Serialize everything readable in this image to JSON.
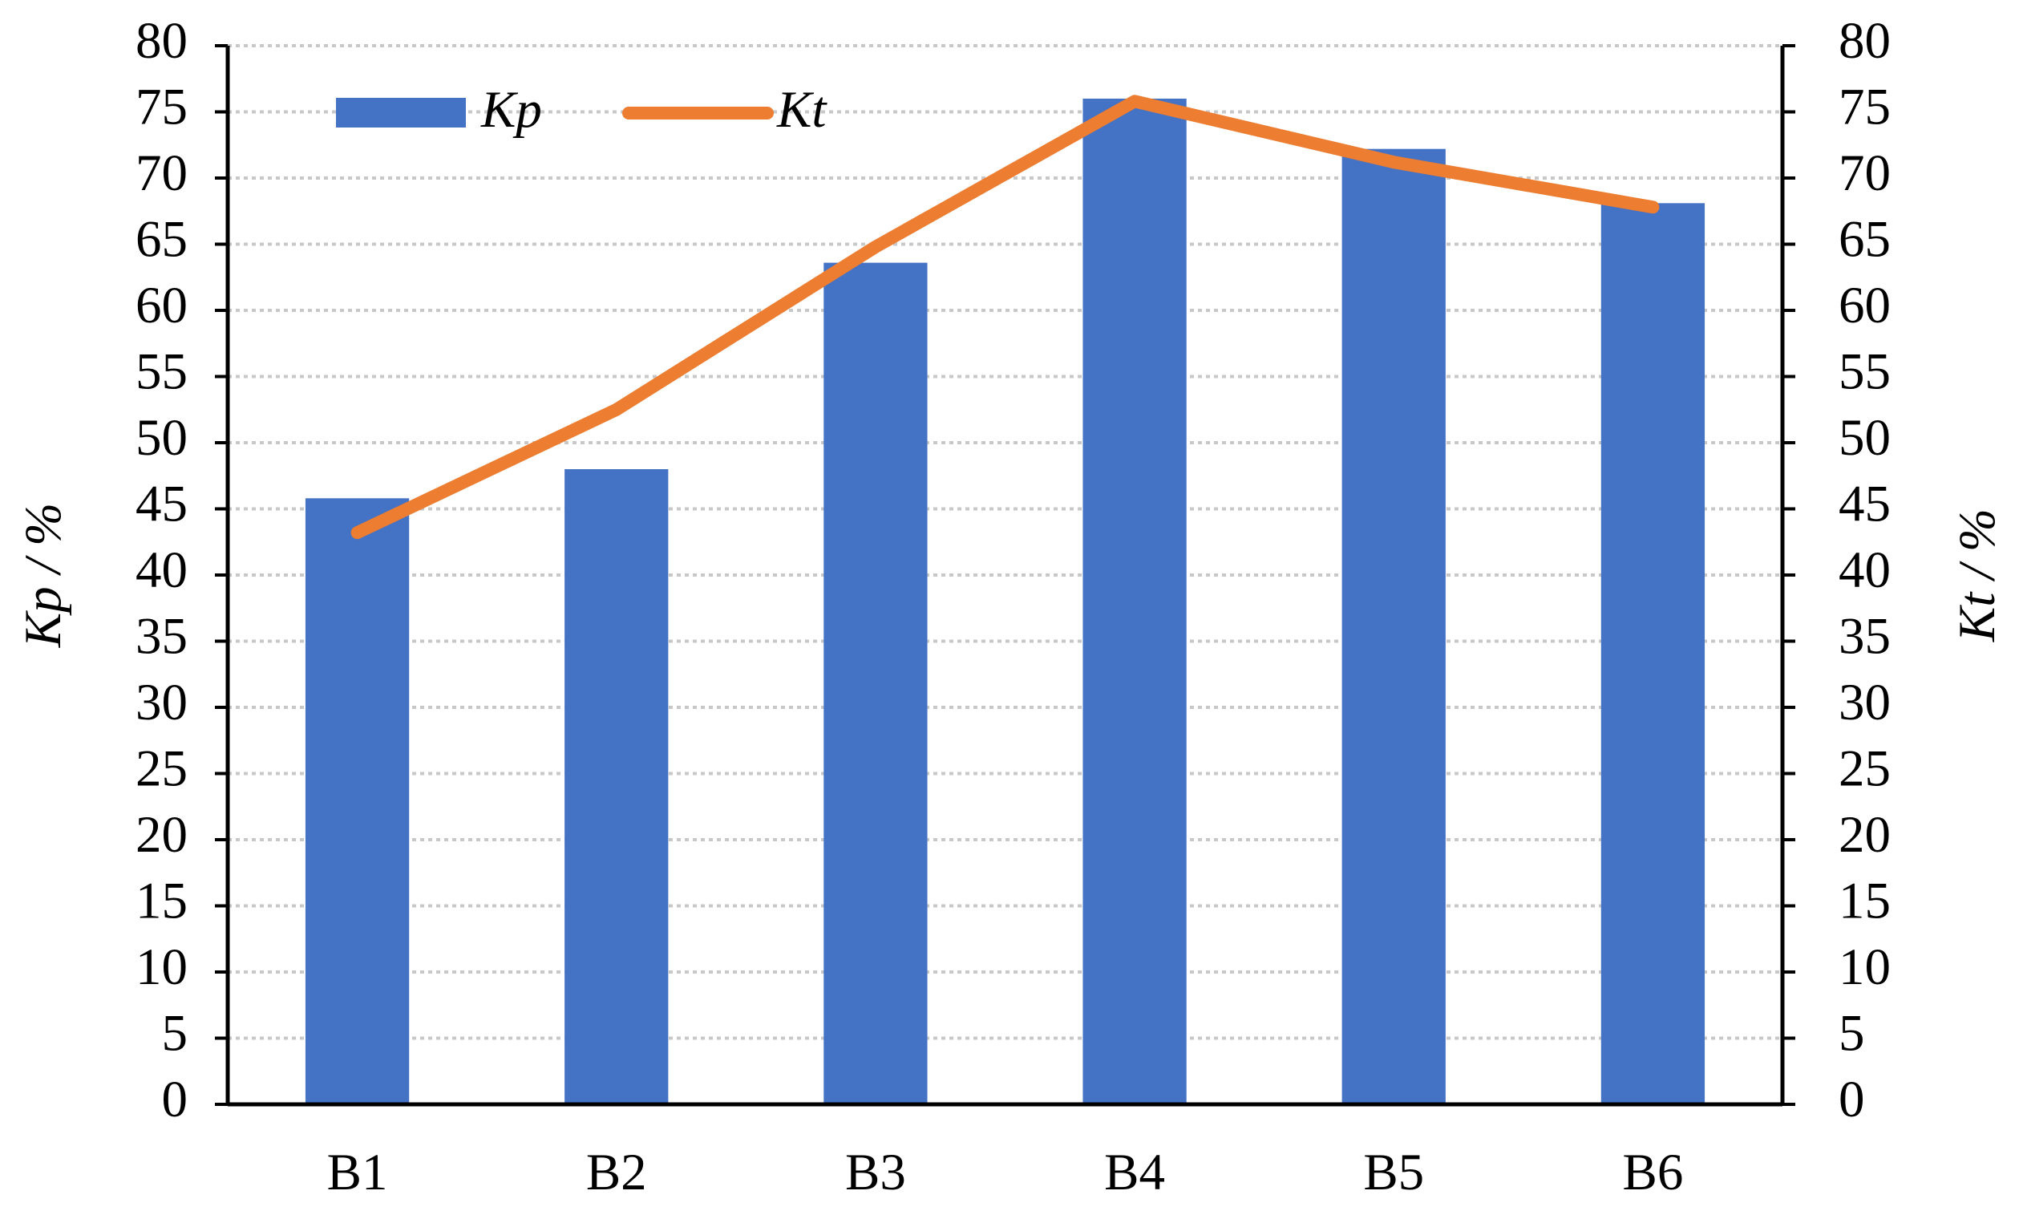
{
  "chart_data": {
    "type": "bar",
    "categories": [
      "B1",
      "B2",
      "B3",
      "B4",
      "B5",
      "B6"
    ],
    "series": [
      {
        "name": "Kp",
        "color": "#4472c4",
        "type": "bar",
        "values": [
          45.8,
          48,
          63.6,
          76,
          72.2,
          68.1
        ]
      },
      {
        "name": "Kt",
        "color": "#ed7d31",
        "type": "line",
        "axis": "y2",
        "values": [
          43.2,
          52.5,
          64.8,
          75.8,
          71.2,
          67.8
        ]
      }
    ],
    "ylabel": "Kp / %",
    "y2label": "Kt / %",
    "ylim": [
      0,
      80
    ],
    "yticks": [
      0,
      5,
      10,
      15,
      20,
      25,
      30,
      35,
      40,
      45,
      50,
      55,
      60,
      65,
      70,
      75,
      80
    ],
    "y2lim": [
      0,
      80
    ],
    "y2ticks": [
      0,
      5,
      10,
      15,
      20,
      25,
      30,
      35,
      40,
      45,
      50,
      55,
      60,
      65,
      70,
      75,
      80
    ],
    "grid": true,
    "legend": "top-left"
  }
}
